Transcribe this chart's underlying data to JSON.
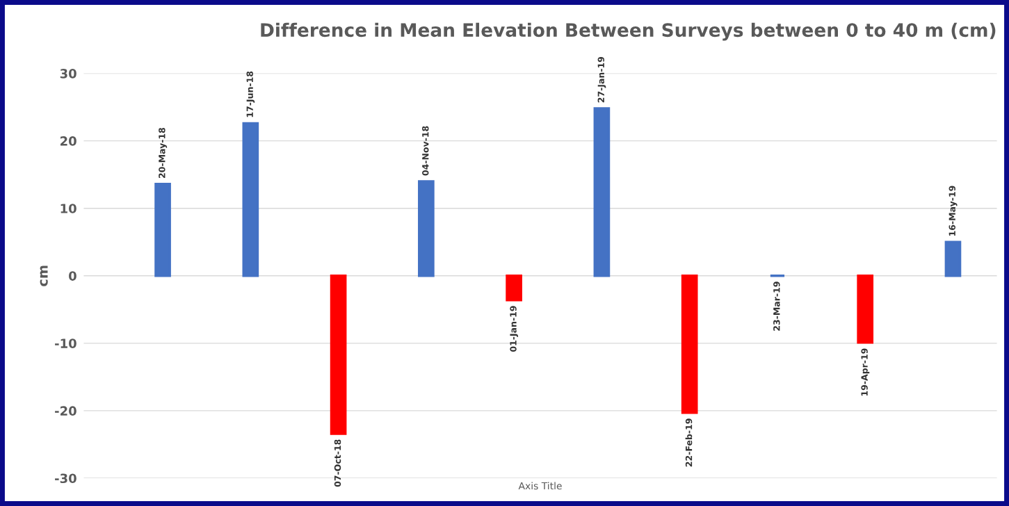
{
  "chart_data": {
    "type": "bar",
    "title": "Difference in Mean Elevation Between Surveys between 0 to 40 m (cm)",
    "xlabel": "Axis Title",
    "ylabel": "cm",
    "categories": [
      null,
      null,
      null,
      null,
      null,
      null,
      null,
      null,
      null,
      null
    ],
    "value_labels": [
      "20-May-18",
      "17-Jun-18",
      "07-Oct-18",
      "04-Nov-18",
      "01-Jan-19",
      "27-Jan-19",
      "22-Feb-19",
      "23-Mar-19",
      "19-Apr-19",
      "16-May-19"
    ],
    "values": [
      13.6,
      22.6,
      -23.4,
      14.0,
      -3.6,
      24.8,
      -20.3,
      0,
      -9.9,
      5.0
    ],
    "colors": [
      "#4472c4",
      "#4472c4",
      "#ff0000",
      "#4472c4",
      "#ff0000",
      "#4472c4",
      "#ff0000",
      "#4472c4",
      "#ff0000",
      "#4472c4"
    ],
    "ylim": [
      -30,
      30
    ],
    "yticks": [
      -30,
      -20,
      -10,
      0,
      10,
      20,
      30
    ],
    "grid": "y",
    "legend": false
  }
}
